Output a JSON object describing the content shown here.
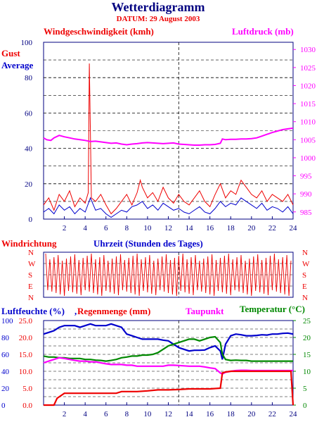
{
  "header": {
    "title": "Wetterdiagramm",
    "date": "DATUM: 29 August 2003"
  },
  "colors": {
    "red": "#ee0000",
    "blue": "#0000cc",
    "magenta": "#ff00ff",
    "green": "#008800",
    "navy": "#000080",
    "black": "#000000"
  },
  "chart_data": [
    {
      "type": "line",
      "labels": {
        "wind_title": "Windgeschwindigkeit (kmh)",
        "pressure_title": "Luftdruck (mb)",
        "gust": "Gust",
        "average": "Average"
      },
      "x_ticks": [
        "2",
        "4",
        "6",
        "8",
        "10",
        "12",
        "14",
        "16",
        "18",
        "20",
        "22",
        "24"
      ],
      "xlim": [
        0,
        24
      ],
      "ylim_left": [
        0,
        100
      ],
      "y_ticks_left": [
        "0",
        "20",
        "40",
        "60",
        "80",
        "100"
      ],
      "ylim_right": [
        983,
        1032
      ],
      "y_ticks_right": [
        "985",
        "990",
        "995",
        "1000",
        "1005",
        "1010",
        "1015",
        "1020",
        "1025",
        "1030"
      ],
      "series": [
        {
          "name": "Gust",
          "axis": "left",
          "x": [
            0,
            0.5,
            1,
            1.5,
            2,
            2.5,
            3,
            3.5,
            4,
            4.3,
            4.4,
            4.5,
            4.6,
            5,
            5.5,
            6,
            6.5,
            7,
            7.5,
            8,
            8.5,
            9,
            9.3,
            9.5,
            10,
            10.5,
            11,
            11.5,
            12,
            12.5,
            13,
            13.5,
            14,
            14.5,
            15,
            15.5,
            16,
            16.5,
            17,
            17.5,
            18,
            18.5,
            19,
            19.5,
            20,
            20.5,
            21,
            21.5,
            22,
            22.5,
            23,
            23.5,
            24
          ],
          "values": [
            8,
            12,
            5,
            14,
            10,
            16,
            7,
            12,
            9,
            15,
            88,
            50,
            12,
            10,
            14,
            8,
            3,
            6,
            10,
            14,
            8,
            15,
            22,
            18,
            12,
            15,
            10,
            18,
            12,
            9,
            14,
            10,
            8,
            12,
            16,
            10,
            7,
            14,
            20,
            12,
            16,
            14,
            22,
            18,
            14,
            12,
            16,
            10,
            14,
            12,
            10,
            14,
            8
          ]
        },
        {
          "name": "Average",
          "axis": "left",
          "x": [
            0,
            0.5,
            1,
            1.5,
            2,
            2.5,
            3,
            3.5,
            4,
            4.5,
            5,
            5.5,
            6,
            6.5,
            7,
            7.5,
            8,
            8.5,
            9,
            9.5,
            10,
            10.5,
            11,
            11.5,
            12,
            12.5,
            13,
            13.5,
            14,
            14.5,
            15,
            15.5,
            16,
            16.5,
            17,
            17.5,
            18,
            18.5,
            19,
            19.5,
            20,
            20.5,
            21,
            21.5,
            22,
            22.5,
            23,
            23.5,
            24
          ],
          "values": [
            4,
            6,
            3,
            8,
            5,
            7,
            3,
            6,
            4,
            12,
            5,
            6,
            3,
            1,
            3,
            5,
            4,
            7,
            8,
            10,
            6,
            8,
            5,
            9,
            7,
            5,
            6,
            4,
            3,
            5,
            7,
            4,
            3,
            6,
            10,
            7,
            9,
            8,
            12,
            10,
            8,
            6,
            9,
            5,
            7,
            6,
            4,
            7,
            3
          ]
        },
        {
          "name": "Luftdruck",
          "axis": "right",
          "x": [
            0,
            0.3,
            0.7,
            1,
            1.5,
            2,
            2.5,
            3,
            3.5,
            4,
            4.5,
            5,
            5.5,
            6,
            6.5,
            7,
            7.5,
            8,
            8.5,
            9,
            9.5,
            10,
            10.5,
            11,
            11.5,
            12,
            12.5,
            13,
            13.5,
            14,
            14.5,
            15,
            15.5,
            16,
            16.5,
            17,
            17.2,
            17.5,
            18,
            18.5,
            19,
            19.5,
            20,
            20.5,
            21,
            21.5,
            22,
            22.5,
            23,
            23.5,
            24
          ],
          "values": [
            1005.5,
            1005,
            1004.8,
            1005.5,
            1006.2,
            1005.8,
            1005.5,
            1005.2,
            1005,
            1004.8,
            1004.5,
            1004.6,
            1004.4,
            1004.2,
            1004,
            1004.1,
            1003.8,
            1003.6,
            1003.8,
            1003.9,
            1004.1,
            1004.2,
            1004.1,
            1004,
            1003.9,
            1004,
            1004.1,
            1003.8,
            1003.7,
            1003.6,
            1003.5,
            1003.5,
            1003.6,
            1003.6,
            1003.7,
            1004,
            1005.2,
            1005,
            1005.1,
            1005.1,
            1005.2,
            1005.2,
            1005.3,
            1005.5,
            1006,
            1006.5,
            1007,
            1007.4,
            1007.8,
            1008,
            1008.2
          ]
        }
      ]
    },
    {
      "type": "line",
      "labels": {
        "wind_dir_title": "Windrichtung",
        "time_title": "Uhrzeit (Stunden des Tages)"
      },
      "dir_labels": [
        "N",
        "W",
        "S",
        "E",
        "N"
      ],
      "xlim": [
        0,
        24
      ],
      "ylim": [
        0,
        360
      ],
      "series": [
        {
          "name": "Windrichtung",
          "oscillation_period_hours": 0.4,
          "x_start": 0.2,
          "x_end": 23.8
        }
      ]
    },
    {
      "type": "line",
      "labels": {
        "humidity_title": "Luftfeuchte (%)",
        "comma": ",",
        "rain_title": "Regenmenge (mm)",
        "dewpoint_title": "Taupunkt",
        "temp_title": "Temperatur (",
        "temp_unit": "°C)"
      },
      "x_ticks": [
        "2",
        "4",
        "6",
        "8",
        "10",
        "12",
        "14",
        "16",
        "18",
        "20",
        "22",
        "24"
      ],
      "xlim": [
        0,
        24
      ],
      "y_ticks_humidity": [
        "0",
        "20",
        "40",
        "60",
        "80",
        "100"
      ],
      "y_ticks_rain": [
        "0.0",
        "5.0",
        "10.0",
        "15.0",
        "20.0",
        "25.0"
      ],
      "ylim_rain": [
        0,
        25
      ],
      "y_ticks_temp": [
        "0",
        "5",
        "10",
        "15",
        "20",
        "25"
      ],
      "ylim_temp": [
        0,
        25
      ],
      "series": [
        {
          "name": "Luftfeuchte",
          "axis": "rain_scale",
          "x": [
            0,
            0.5,
            1,
            1.5,
            2,
            2.5,
            3,
            3.5,
            4,
            4.5,
            5,
            5.5,
            6,
            6.5,
            7,
            7.5,
            8,
            8.5,
            9,
            9.5,
            10,
            10.5,
            11,
            11.5,
            12,
            12.5,
            13,
            13.5,
            14,
            14.5,
            15,
            15.5,
            16,
            16.5,
            17,
            17.2,
            17.5,
            18,
            18.5,
            19,
            19.5,
            20,
            20.5,
            21,
            21.5,
            22,
            22.5,
            23,
            23.5,
            24
          ],
          "values": [
            21,
            21.5,
            22,
            23,
            23.5,
            23.5,
            23.5,
            23,
            23.5,
            24,
            23.5,
            23.5,
            23.5,
            24,
            23.5,
            23,
            21,
            20.5,
            20,
            19.5,
            19.5,
            19.5,
            19.5,
            19.2,
            19,
            18,
            17,
            16.5,
            16,
            16.2,
            16.2,
            16.3,
            17,
            17.5,
            16,
            13.5,
            18,
            20.5,
            21,
            20.8,
            20.5,
            20.5,
            20.6,
            20.8,
            20.7,
            21,
            21,
            21.2,
            21.3,
            21
          ]
        },
        {
          "name": "Temperatur",
          "axis": "temp",
          "x": [
            0,
            0.5,
            1,
            1.5,
            2,
            2.5,
            3,
            3.5,
            4,
            4.5,
            5,
            5.5,
            6,
            6.5,
            7,
            7.5,
            8,
            8.5,
            9,
            9.5,
            10,
            10.5,
            11,
            11.5,
            12,
            12.5,
            13,
            13.5,
            14,
            14.5,
            15,
            15.5,
            16,
            16.5,
            17,
            17.2,
            17.5,
            18,
            18.5,
            19,
            19.5,
            20,
            20.5,
            21,
            21.5,
            22,
            22.5,
            23,
            23.5,
            24
          ],
          "values": [
            14.5,
            14.2,
            14.2,
            14,
            14,
            13.8,
            13.8,
            13.8,
            13.5,
            13.5,
            13.3,
            13.2,
            13,
            13.2,
            13.5,
            14,
            14.2,
            14.5,
            14.5,
            14.8,
            14.8,
            15,
            15.5,
            16.5,
            17.5,
            18,
            18.5,
            19,
            19.5,
            19.5,
            19,
            19.5,
            20,
            20.2,
            18.5,
            15,
            13.5,
            13.2,
            13.3,
            13.2,
            13.2,
            13,
            13,
            13,
            13,
            13,
            13,
            13,
            13,
            13
          ]
        },
        {
          "name": "Taupunkt",
          "axis": "temp",
          "x": [
            0,
            0.5,
            1,
            1.5,
            2,
            2.5,
            3,
            3.5,
            4,
            4.5,
            5,
            5.5,
            6,
            6.5,
            7,
            7.5,
            8,
            8.5,
            9,
            9.5,
            10,
            10.5,
            11,
            11.5,
            12,
            12.5,
            13,
            13.5,
            14,
            14.5,
            15,
            15.5,
            16,
            16.5,
            17,
            17.2,
            17.5,
            18,
            18.5,
            19,
            19.5,
            20,
            20.5,
            21,
            21.5,
            22,
            22.5,
            23,
            23.5,
            24
          ],
          "values": [
            12.5,
            13,
            13.5,
            14,
            13.8,
            13.5,
            13.2,
            13,
            13,
            12.8,
            12.8,
            12.5,
            12.2,
            12,
            12,
            12,
            11.8,
            11.8,
            11.5,
            11.5,
            11.5,
            11.5,
            11.5,
            11.5,
            11.8,
            11.8,
            11.7,
            11.6,
            11.5,
            11.5,
            11.5,
            11.3,
            11,
            10.8,
            9.5,
            9.2,
            9.7,
            10,
            10.2,
            10.3,
            10.3,
            10.2,
            10.2,
            10.2,
            10.2,
            10.2,
            10.2,
            10.2,
            10.2,
            10.2
          ]
        },
        {
          "name": "Regenmenge",
          "axis": "rain_scale",
          "x": [
            0,
            1,
            1.3,
            2,
            3,
            4,
            5,
            6,
            7,
            7.5,
            8,
            9,
            10,
            11,
            12,
            13,
            14,
            15,
            16,
            17,
            17.2,
            17.5,
            18,
            19,
            20,
            21,
            22,
            23,
            23.8,
            24
          ],
          "values": [
            0,
            0,
            2,
            3.5,
            3.5,
            3.5,
            3.5,
            3.5,
            3.5,
            4,
            4,
            4,
            4.2,
            4.5,
            4.5,
            4.6,
            4.8,
            4.8,
            4.8,
            5,
            9.5,
            9.8,
            10,
            10,
            10,
            10,
            10,
            10,
            10,
            0
          ]
        }
      ]
    }
  ]
}
